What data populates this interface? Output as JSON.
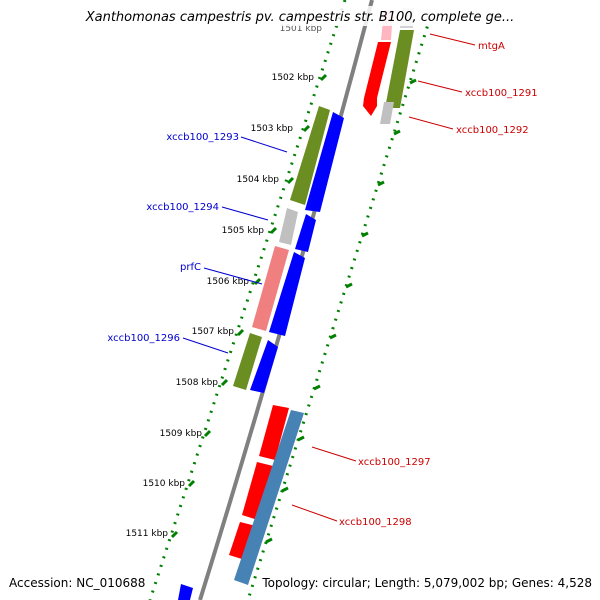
{
  "map": {
    "title": "Xanthomonas campestris pv. campestris str. B100, complete ge...",
    "footer_left": "Accession: NC_010688",
    "footer_right": "Topology: circular; Length: 5,079,002 bp; Genes: 4,528",
    "tick_labels": [
      "1501 kbp",
      "1502 kbp",
      "1503 kbp",
      "1504 kbp",
      "1505 kbp",
      "1506 kbp",
      "1507 kbp",
      "1508 kbp",
      "1509 kbp",
      "1510 kbp",
      "1511 kbp"
    ],
    "left_labels": [
      "xccb100_1293",
      "xccb100_1294",
      "prfC",
      "xccb100_1296"
    ],
    "right_labels": [
      "mtgA",
      "xccb100_1291",
      "xccb100_1292",
      "xccb100_1297",
      "xccb100_1298"
    ]
  },
  "colors": {
    "forward_cds": "#0000ff",
    "reverse_cds": "#ff0000",
    "cog_green": "#6b8e23",
    "cog_grey": "#c0c0c0",
    "cog_pink": "#f08080",
    "cog_steelblue": "#4682b4",
    "backbone": "#808080",
    "tick_green": "#008000",
    "left_label": "#0000cd",
    "right_label": "#cc0000"
  }
}
